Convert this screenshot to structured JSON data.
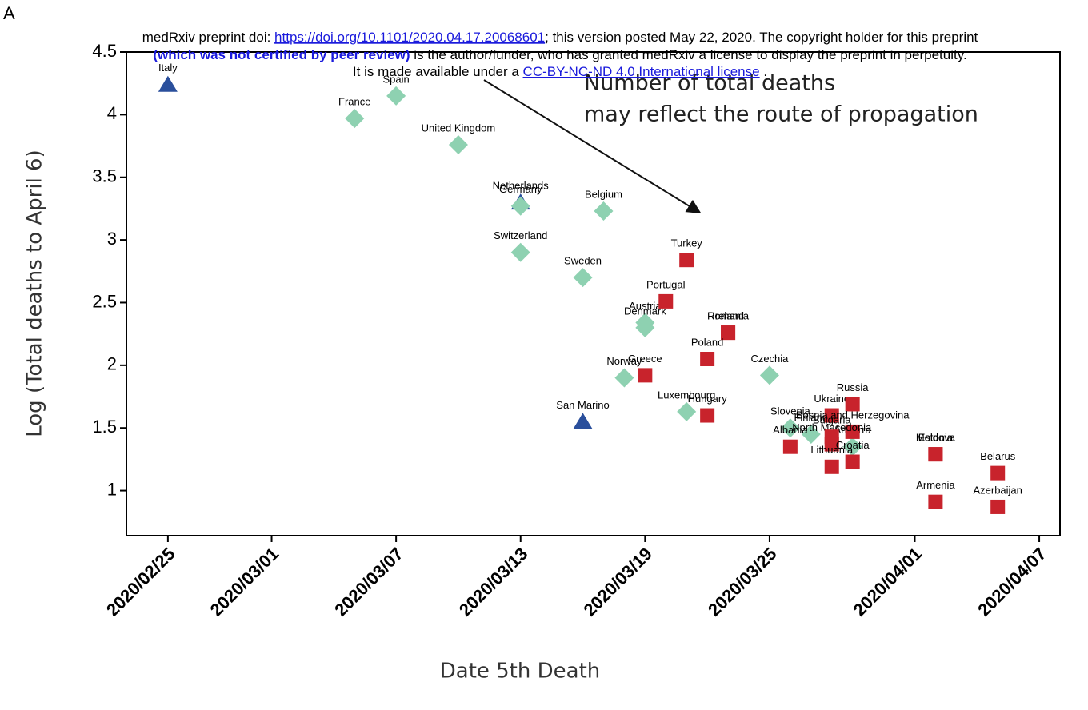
{
  "header": {
    "panel": "A",
    "line1_a": "medRxiv preprint doi: ",
    "doi": "https://doi.org/10.1101/2020.04.17.20068601",
    "line1_b": "; this version posted May 22, 2020. The copyright holder for this preprint",
    "line2_a": "(which was not certified by peer review)",
    "line2_b": " is the author/funder, who has granted medRxiv a license to display the preprint in perpetuity.",
    "line3_a": "It is made available under a ",
    "license": "CC-BY-NC-ND 4.0 International license",
    "line3_b": " ."
  },
  "chart_data": {
    "type": "scatter",
    "xlabel": "Date 5th Death",
    "ylabel": "Log (Total deaths to April 6)",
    "annotations": [
      "Number of total deaths",
      "may reflect the route of propagation"
    ],
    "xlim": [
      "2020/02/23",
      "2020/04/08"
    ],
    "xticks": [
      "2020/02/25",
      "2020/03/01",
      "2020/03/07",
      "2020/03/13",
      "2020/03/19",
      "2020/03/25",
      "2020/04/01",
      "2020/04/07"
    ],
    "ylim": [
      0.64,
      4.5
    ],
    "yticks": [
      1.0,
      1.5,
      2.0,
      2.5,
      3.0,
      3.5,
      4.0,
      4.5
    ],
    "series": [
      {
        "marker": "triangle",
        "color": "#2a4f9c",
        "labels": [
          "Italy",
          "Netherlands",
          "San Marino"
        ],
        "x": [
          "2020/02/25",
          "2020/03/13",
          "2020/03/16"
        ],
        "values": [
          4.24,
          3.3,
          1.55
        ]
      },
      {
        "marker": "diamond",
        "color": "#8ed1b1",
        "labels": [
          "France",
          "Spain",
          "United Kingdom",
          "Germany",
          "Belgium",
          "Switzerland",
          "Sweden",
          "Austria",
          "Denmark",
          "Czechia",
          "Norway",
          "Luxembourg",
          "Slovenia",
          "Finland",
          "Andorra"
        ],
        "x": [
          "2020/03/05",
          "2020/03/07",
          "2020/03/10",
          "2020/03/13",
          "2020/03/17",
          "2020/03/13",
          "2020/03/16",
          "2020/03/19",
          "2020/03/19",
          "2020/03/25",
          "2020/03/18",
          "2020/03/21",
          "2020/03/26",
          "2020/03/27",
          "2020/03/29"
        ],
        "values": [
          3.97,
          4.15,
          3.76,
          3.27,
          3.23,
          2.9,
          2.7,
          2.34,
          2.3,
          1.92,
          1.9,
          1.63,
          1.5,
          1.45,
          1.35
        ]
      },
      {
        "marker": "square",
        "color": "#c8232c",
        "labels": [
          "Turkey",
          "Portugal",
          "Romania",
          "Ireland",
          "Poland",
          "Greece",
          "Hungary",
          "Albania",
          "Ukraine",
          "Russia",
          "Bosnia and Herzegovina",
          "North Macedonia",
          "Bulgaria",
          "Croatia",
          "Lithuania",
          "Estonia",
          "Moldova",
          "Belarus",
          "Armenia",
          "Azerbaijan"
        ],
        "x": [
          "2020/03/21",
          "2020/03/20",
          "2020/03/23",
          "2020/03/23",
          "2020/03/22",
          "2020/03/19",
          "2020/03/22",
          "2020/03/26",
          "2020/03/28",
          "2020/03/29",
          "2020/03/29",
          "2020/03/28",
          "2020/03/28",
          "2020/03/29",
          "2020/03/28",
          "2020/04/02",
          "2020/04/02",
          "2020/04/05",
          "2020/04/02",
          "2020/04/05"
        ],
        "values": [
          2.84,
          2.51,
          2.26,
          2.26,
          2.05,
          1.92,
          1.6,
          1.35,
          1.6,
          1.69,
          1.47,
          1.37,
          1.43,
          1.23,
          1.19,
          1.29,
          1.29,
          1.14,
          0.91,
          0.87
        ]
      }
    ]
  }
}
